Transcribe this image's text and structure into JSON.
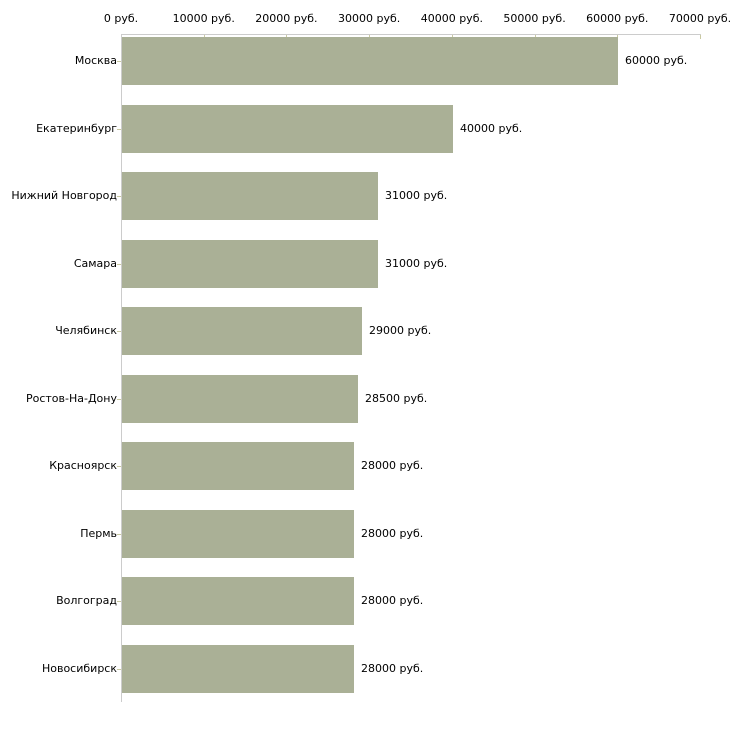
{
  "chart_data": {
    "type": "bar",
    "orientation": "horizontal",
    "title": "",
    "categories": [
      "Москва",
      "Екатеринбург",
      "Нижний Новгород",
      "Самара",
      "Челябинск",
      "Ростов-На-Дону",
      "Красноярск",
      "Пермь",
      "Волгоград",
      "Новосибирск"
    ],
    "values": [
      60000,
      40000,
      31000,
      31000,
      29000,
      28500,
      28000,
      28000,
      28000,
      28000
    ],
    "value_labels": [
      "60000 руб.",
      "40000 руб.",
      "31000 руб.",
      "31000 руб.",
      "29000 руб.",
      "28500 руб.",
      "28000 руб.",
      "28000 руб.",
      "28000 руб.",
      "28000 руб."
    ],
    "unit": "руб.",
    "xlabel": "",
    "ylabel": "",
    "xlim": [
      0,
      70000
    ],
    "x_ticks": [
      0,
      10000,
      20000,
      30000,
      40000,
      50000,
      60000,
      70000
    ],
    "x_tick_labels": [
      "0 руб.",
      "10000 руб.",
      "20000 руб.",
      "30000 руб.",
      "40000 руб.",
      "50000 руб.",
      "60000 руб.",
      "70000 руб."
    ],
    "grid": false,
    "legend": false,
    "colors": {
      "bar": "#aab096",
      "axis_line": "#cccccc",
      "tick_mark": "#c9c9a2",
      "text": "#000000",
      "background": "#ffffff"
    }
  }
}
